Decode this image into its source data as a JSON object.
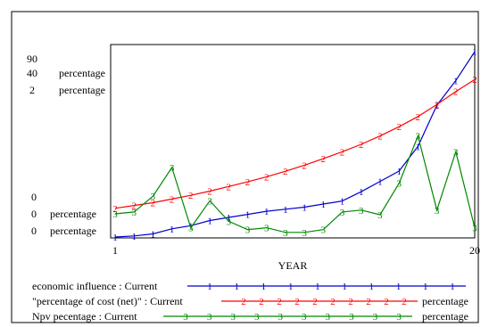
{
  "chart_data": {
    "type": "line",
    "x_axis": {
      "label": "YEAR",
      "min": 1,
      "max": 20,
      "tick_labels": [
        "1",
        "20"
      ]
    },
    "y_axis_labels": [
      {
        "top": "90",
        "bottom": "0"
      },
      {
        "top": "40",
        "bottom": "0",
        "unit": "percentage"
      },
      {
        "top": "2",
        "bottom": "0",
        "unit": "percentage"
      }
    ],
    "series": [
      {
        "marker": "1",
        "color": "#0000cc",
        "legend": "economic influence : Current",
        "unit": "",
        "y_min": 0,
        "y_max": 90,
        "x": [
          1,
          2,
          3,
          4,
          5,
          6,
          7,
          8,
          9,
          10,
          11,
          12,
          13,
          14,
          15,
          16,
          17,
          18,
          19,
          20
        ],
        "y": [
          0,
          0.5,
          1.5,
          4,
          5.5,
          8,
          9.5,
          11,
          12.5,
          13.5,
          14.5,
          16,
          17.5,
          22,
          27,
          32,
          44,
          64,
          76,
          90
        ]
      },
      {
        "marker": "2",
        "color": "#ff0000",
        "legend": "\"percentage of cost (net)\" : Current",
        "unit": "percentage",
        "y_min": 0,
        "y_max": 40,
        "x": [
          1,
          2,
          3,
          4,
          5,
          6,
          7,
          8,
          9,
          10,
          11,
          12,
          13,
          14,
          15,
          16,
          17,
          18,
          19,
          20
        ],
        "y": [
          6.2,
          6.8,
          7.4,
          8.2,
          9.0,
          9.9,
          10.9,
          11.9,
          13.0,
          14.2,
          15.5,
          16.9,
          18.4,
          20.0,
          21.8,
          23.8,
          26.0,
          28.6,
          31.4,
          34.0
        ]
      },
      {
        "marker": "3",
        "color": "#008800",
        "legend": "Npv pecentage : Current",
        "unit": "percentage",
        "y_min": 0,
        "y_max": 2,
        "x": [
          1,
          2,
          3,
          4,
          5,
          6,
          7,
          8,
          9,
          10,
          11,
          12,
          13,
          14,
          15,
          16,
          17,
          18,
          19,
          20
        ],
        "y": [
          0.25,
          0.27,
          0.44,
          0.75,
          0.1,
          0.39,
          0.17,
          0.08,
          0.1,
          0.05,
          0.05,
          0.08,
          0.27,
          0.29,
          0.24,
          0.58,
          1.09,
          0.29,
          0.92,
          0.1
        ]
      }
    ]
  }
}
